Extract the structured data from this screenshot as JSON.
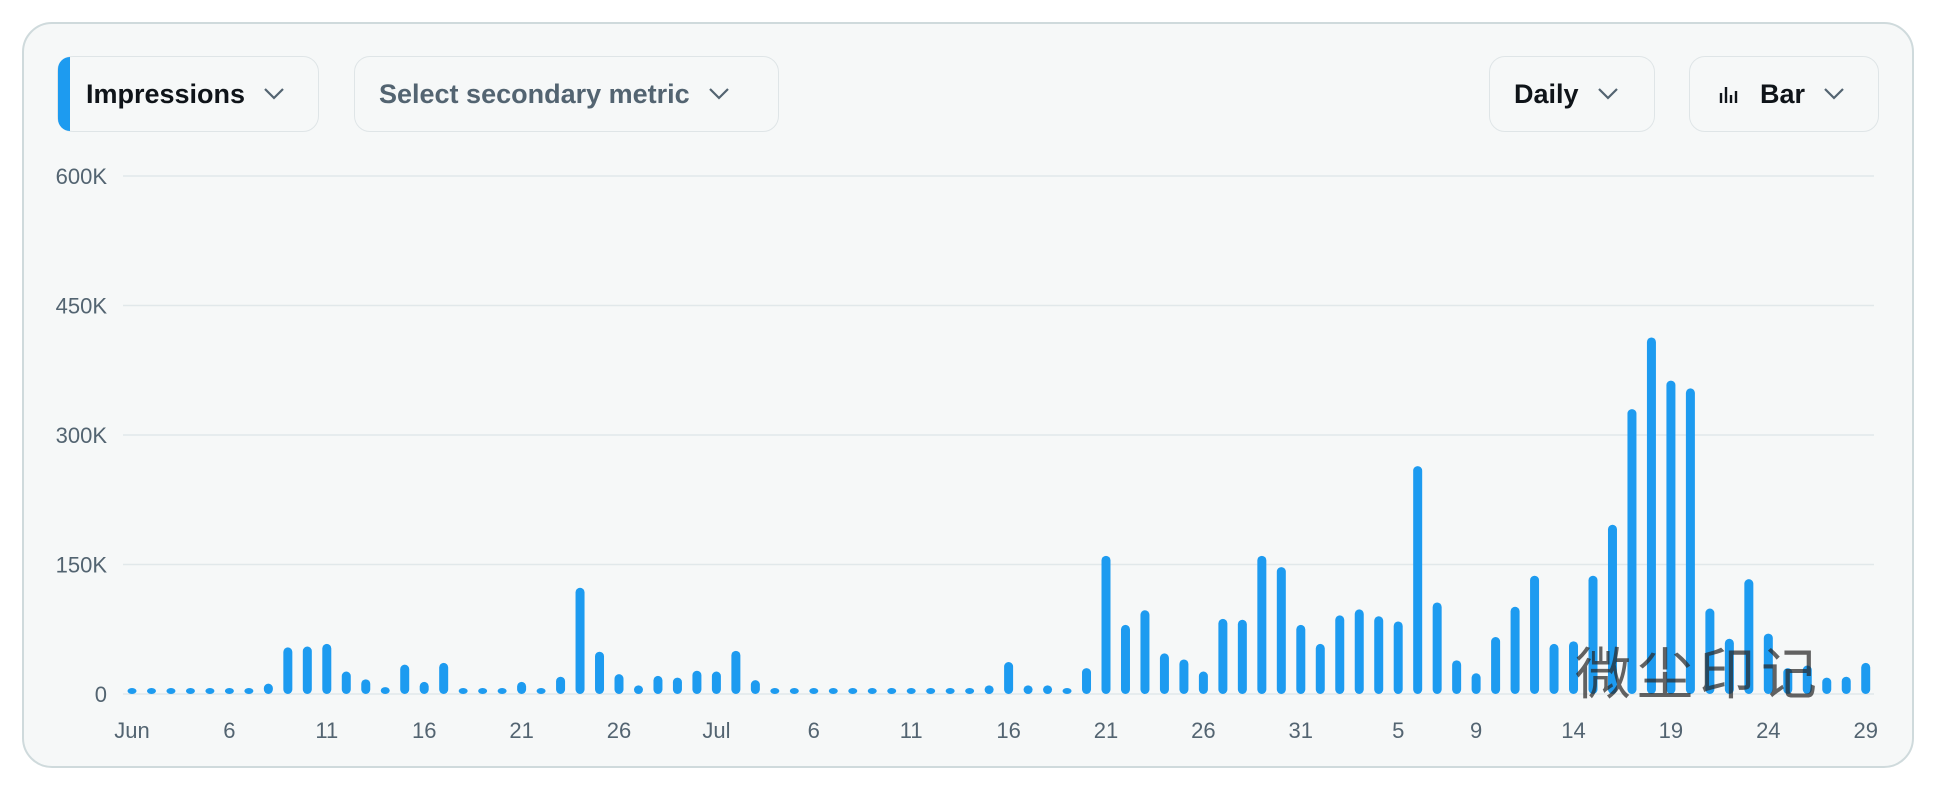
{
  "controls": {
    "primary_metric": "Impressions",
    "secondary_metric": "Select secondary metric",
    "interval": "Daily",
    "chart_style": "Bar"
  },
  "watermark": "微尘印记",
  "chart_data": {
    "type": "bar",
    "color": "#1d9bf0",
    "grid": true,
    "ylim": [
      0,
      600000
    ],
    "yticks": [
      0,
      {
        "value": 150000,
        "label": "150K"
      },
      {
        "value": 300000,
        "label": "300K"
      },
      {
        "value": 450000,
        "label": "450K"
      },
      {
        "value": 600000,
        "label": "600K"
      }
    ],
    "categories": [
      "Jun",
      null,
      null,
      null,
      null,
      "6",
      null,
      null,
      null,
      null,
      "11",
      null,
      null,
      null,
      null,
      "16",
      null,
      null,
      null,
      null,
      "21",
      null,
      null,
      null,
      null,
      "26",
      null,
      null,
      null,
      null,
      "Jul",
      null,
      null,
      null,
      null,
      "6",
      null,
      null,
      null,
      null,
      "11",
      null,
      null,
      null,
      null,
      "16",
      null,
      null,
      null,
      null,
      "21",
      null,
      null,
      null,
      null,
      "26",
      null,
      null,
      null,
      null,
      "31",
      null,
      null,
      null,
      null,
      "5",
      null,
      null,
      null,
      "9",
      null,
      null,
      null,
      null,
      "14",
      null,
      null,
      null,
      null,
      "19",
      null,
      null,
      null,
      null,
      "24",
      null,
      null,
      null,
      null,
      "29"
    ],
    "values": [
      5000,
      3000,
      2000,
      1000,
      1000,
      1000,
      1000,
      12000,
      54000,
      55000,
      58000,
      26000,
      17000,
      8000,
      34000,
      14000,
      36000,
      3000,
      3000,
      2000,
      14000,
      5000,
      20000,
      123000,
      49000,
      23000,
      10000,
      21000,
      19000,
      27000,
      26000,
      50000,
      16000,
      2000,
      2000,
      2000,
      2000,
      2000,
      2000,
      2000,
      2000,
      2000,
      3000,
      3000,
      10000,
      37000,
      10000,
      10000,
      5000,
      30000,
      160000,
      80000,
      97000,
      47000,
      40000,
      26000,
      87000,
      86000,
      160000,
      147000,
      80000,
      58000,
      91000,
      98000,
      90000,
      84000,
      264000,
      106000,
      39000,
      24000,
      66000,
      101000,
      137000,
      58000,
      61000,
      137000,
      196000,
      330000,
      413000,
      363000,
      354000,
      99000,
      64000,
      133000,
      70000,
      30000,
      33000,
      19000,
      20000,
      36000
    ]
  }
}
